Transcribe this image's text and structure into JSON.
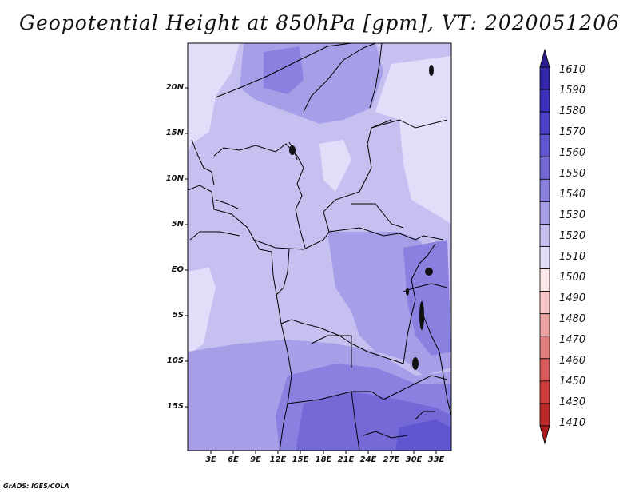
{
  "title": "Geopotential Height at 850hPa [gpm], VT: 2020051206",
  "credit": "GrADS: IGES/COLA",
  "map": {
    "variable": "Geopotential Height at 850hPa",
    "units": "gpm",
    "valid_time": "2020051206",
    "lat_labels": [
      "20N",
      "15N",
      "10N",
      "5N",
      "EQ",
      "5S",
      "10S",
      "15S"
    ],
    "lon_labels": [
      "3E",
      "6E",
      "9E",
      "12E",
      "15E",
      "18E",
      "21E",
      "24E",
      "27E",
      "30E",
      "33E"
    ]
  },
  "colorbar": {
    "labels": [
      "1610",
      "1590",
      "1580",
      "1570",
      "1560",
      "1550",
      "1540",
      "1530",
      "1520",
      "1510",
      "1500",
      "1490",
      "1480",
      "1470",
      "1460",
      "1450",
      "1430",
      "1410"
    ],
    "colors": [
      "#2a1e8e",
      "#3326a8",
      "#3d30bb",
      "#4d40c9",
      "#6156d2",
      "#7569d8",
      "#8a80e0",
      "#a79ee8",
      "#c6c0f1",
      "#e2defa",
      "#fde9e9",
      "#f7c7c7",
      "#eea3a3",
      "#e47f7f",
      "#d95c5c",
      "#cc3c3c",
      "#bb2a2a",
      "#a61c1c"
    ]
  },
  "fills": {
    "c1550": "#8a80e0",
    "c1540": "#a79ee8",
    "c1530": "#c6c0f1",
    "c1520": "#e2defa",
    "c1560": "#7569d8",
    "c1570": "#6156d2"
  }
}
